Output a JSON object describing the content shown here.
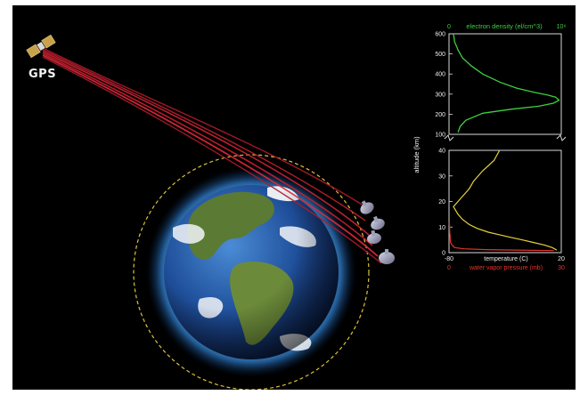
{
  "transmitter": {
    "label": "GPS"
  },
  "chart_data": [
    {
      "type": "line",
      "title": "",
      "xlabel": "electron density (el/cm^3)",
      "x_tick_labels": [
        "0",
        "10⁶"
      ],
      "ylabel": "altitude (km)",
      "y_ticks": [
        "100",
        "200",
        "300",
        "400",
        "500",
        "600"
      ],
      "ylim": [
        100,
        600
      ],
      "colors": {
        "electron_density": "#3fcf3f"
      },
      "series": [
        {
          "x": [
            0.04,
            0.05,
            0.08,
            0.12,
            0.2,
            0.3,
            0.45,
            0.6,
            0.75,
            0.88,
            0.95,
            0.98,
            0.93,
            0.8,
            0.55,
            0.3,
            0.15,
            0.1,
            0.08
          ],
          "y": [
            600,
            560,
            520,
            480,
            440,
            400,
            360,
            330,
            310,
            295,
            285,
            270,
            255,
            240,
            225,
            205,
            170,
            140,
            110
          ]
        }
      ]
    },
    {
      "type": "line",
      "title": "",
      "ylabel": "altitude (km)",
      "y_ticks": [
        "0",
        "10",
        "20",
        "30",
        "40"
      ],
      "ylim": [
        0,
        40
      ],
      "axes": [
        {
          "label": "temperature (C)",
          "ticks": [
            "-80",
            "20"
          ],
          "range": [
            -80,
            20
          ],
          "color": "#f0f0f0"
        },
        {
          "label": "water vapor pressure (mb)",
          "ticks": [
            "0",
            "30"
          ],
          "range": [
            0,
            30
          ],
          "color": "#e8342a"
        }
      ],
      "colors": {
        "temperature": "#e6d23c",
        "water_vapor": "#e8342a"
      },
      "series": [
        {
          "x": [
            16,
            12,
            5,
            -5,
            -15,
            -25,
            -35,
            -45,
            -55,
            -62,
            -68,
            -72,
            -76,
            -70,
            -62,
            -58,
            -50,
            -40,
            -35
          ],
          "y": [
            1,
            2,
            3,
            4,
            5,
            6,
            7,
            8,
            9.5,
            11,
            13,
            15,
            18,
            21,
            25,
            28,
            32,
            36,
            40
          ]
        },
        {
          "x": [
            28,
            18,
            10,
            4,
            1.5,
            0.8,
            0.4,
            0.3,
            0.2,
            0.15,
            0.1
          ],
          "y": [
            0.8,
            1.0,
            1.2,
            1.5,
            2,
            3,
            4,
            6,
            8,
            10,
            12
          ]
        }
      ]
    }
  ]
}
